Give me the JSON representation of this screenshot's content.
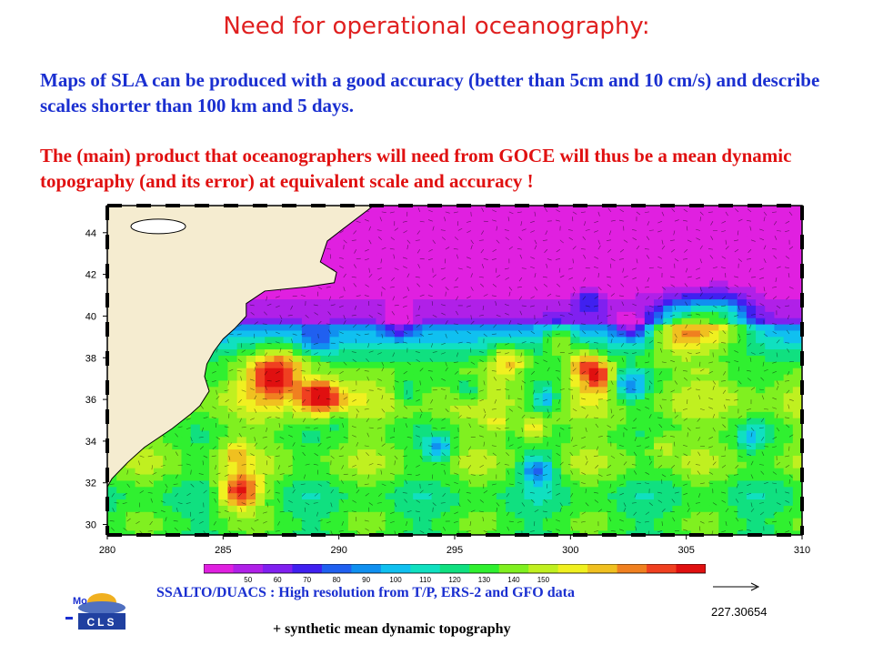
{
  "slide": {
    "title": "Need for operational oceanography:",
    "paragraph1": "Maps of SLA can be produced with a good accuracy (better than 5cm and 10 cm/s) and describe scales shorter than 100 km and 5 days.",
    "paragraph2": "The (main) product that oceanographers will need from GOCE will thus be a mean dynamic topography (and its error) at equivalent scale and accuracy !",
    "caption": "SSALTO/DUACS : High resolution from T/P, ERS-2 and GFO data",
    "caption2": "+ synthetic mean dynamic topography",
    "vector_scale_value": "227.30654",
    "logo_text": "CLS",
    "logo_prefix": "Mo"
  },
  "map": {
    "lon_ticks": [
      "280",
      "285",
      "290",
      "295",
      "300",
      "305",
      "310"
    ],
    "lat_ticks": [
      "44",
      "42",
      "40",
      "38",
      "36",
      "34",
      "32",
      "30"
    ],
    "lon_range": [
      280,
      310
    ],
    "lat_range": [
      29.5,
      45.3
    ],
    "land_color": "#f5ecd0",
    "colorbar_labels": [
      "50",
      "60",
      "70",
      "80",
      "90",
      "100",
      "110",
      "120",
      "130",
      "140",
      "150"
    ],
    "colorbar_colors": [
      "#e020e0",
      "#b020e8",
      "#8020f0",
      "#4020f0",
      "#2060f0",
      "#1090f0",
      "#10c0f0",
      "#10e0c0",
      "#10e080",
      "#30f030",
      "#80f020",
      "#c0f020",
      "#f0f020",
      "#f0c020",
      "#f08020",
      "#f04020",
      "#e01010"
    ]
  }
}
